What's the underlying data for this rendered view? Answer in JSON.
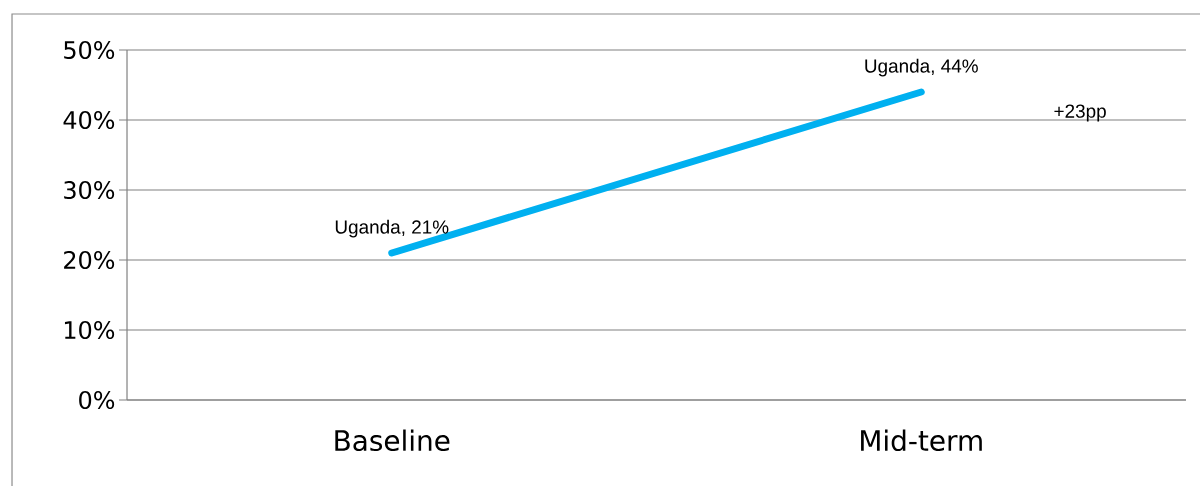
{
  "chart_data": {
    "type": "line",
    "categories": [
      "Baseline",
      "Mid-term"
    ],
    "series": [
      {
        "color": "#00b0f0",
        "values": [
          21,
          44
        ],
        "value_labels": [
          "Uganda, 21%",
          "Uganda, 44%"
        ]
      }
    ],
    "ylim": [
      0,
      50
    ],
    "yticks": [
      {
        "value": 0,
        "label": "0%"
      },
      {
        "value": 10,
        "label": "10%"
      },
      {
        "value": 20,
        "label": "20%"
      },
      {
        "value": 30,
        "label": "30%"
      },
      {
        "value": 40,
        "label": "40%"
      },
      {
        "value": 50,
        "label": "50%"
      }
    ],
    "grid": "y",
    "line_style": "solid",
    "annotations": [
      "+23pp"
    ]
  }
}
